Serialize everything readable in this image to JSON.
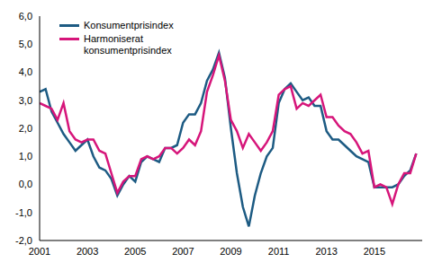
{
  "chart_data": {
    "type": "line",
    "x": [
      2001,
      2001.25,
      2001.5,
      2001.75,
      2002,
      2002.25,
      2002.5,
      2002.75,
      2003,
      2003.25,
      2003.5,
      2003.75,
      2004,
      2004.25,
      2004.5,
      2004.75,
      2005,
      2005.25,
      2005.5,
      2005.75,
      2006,
      2006.25,
      2006.5,
      2006.75,
      2007,
      2007.25,
      2007.5,
      2007.75,
      2008,
      2008.25,
      2008.5,
      2008.75,
      2009,
      2009.25,
      2009.5,
      2009.75,
      2010,
      2010.25,
      2010.5,
      2010.75,
      2011,
      2011.25,
      2011.5,
      2011.75,
      2012,
      2012.25,
      2012.5,
      2012.75,
      2013,
      2013.25,
      2013.5,
      2013.75,
      2014,
      2014.25,
      2014.5,
      2014.75,
      2015,
      2015.25,
      2015.5,
      2015.75,
      2016,
      2016.25,
      2016.5,
      2016.75
    ],
    "series": [
      {
        "name": "Konsumentprisindex",
        "color": "#1d5b83",
        "values": [
          3.3,
          3.4,
          2.6,
          2.2,
          1.8,
          1.5,
          1.2,
          1.4,
          1.6,
          1.0,
          0.6,
          0.5,
          0.2,
          -0.4,
          0.0,
          0.3,
          0.1,
          0.8,
          1.0,
          0.9,
          0.8,
          1.3,
          1.3,
          1.4,
          2.2,
          2.5,
          2.5,
          2.9,
          3.7,
          4.1,
          4.7,
          3.8,
          2.0,
          0.4,
          -0.8,
          -1.5,
          -0.4,
          0.4,
          1.0,
          1.3,
          2.9,
          3.4,
          3.6,
          3.3,
          3.0,
          3.1,
          2.8,
          2.8,
          1.9,
          1.6,
          1.6,
          1.4,
          1.2,
          1.0,
          0.9,
          0.8,
          -0.1,
          -0.1,
          -0.1,
          -0.1,
          0.0,
          0.3,
          0.5,
          1.1
        ]
      },
      {
        "name": "Harmoniserat konsumentprisindex",
        "color": "#d6157a",
        "values": [
          2.9,
          2.8,
          2.7,
          2.3,
          2.9,
          1.9,
          1.6,
          1.5,
          1.6,
          1.6,
          1.2,
          1.1,
          0.4,
          -0.3,
          0.1,
          0.3,
          0.3,
          0.9,
          1.0,
          0.9,
          1.0,
          1.3,
          1.3,
          1.1,
          1.3,
          1.6,
          1.4,
          1.9,
          3.3,
          3.9,
          4.6,
          3.7,
          2.3,
          1.9,
          1.3,
          1.8,
          1.5,
          1.2,
          1.5,
          1.9,
          3.2,
          3.4,
          3.5,
          2.7,
          2.9,
          2.8,
          3.0,
          3.2,
          2.4,
          2.4,
          2.1,
          1.9,
          1.8,
          1.5,
          1.1,
          1.2,
          -0.1,
          0.0,
          -0.1,
          -0.7,
          0.0,
          0.4,
          0.4,
          1.1
        ]
      }
    ],
    "xlim": [
      2001,
      2017
    ],
    "xticks": [
      2001,
      2003,
      2005,
      2007,
      2009,
      2011,
      2013,
      2015
    ],
    "ylim": [
      -2,
      6
    ],
    "yticks": [
      {
        "value": -2,
        "label": "-2,0"
      },
      {
        "value": -1,
        "label": "-1,0"
      },
      {
        "value": 0,
        "label": "0,0"
      },
      {
        "value": 1,
        "label": "1,0"
      },
      {
        "value": 2,
        "label": "2,0"
      },
      {
        "value": 3,
        "label": "3,0"
      },
      {
        "value": 4,
        "label": "4,0"
      },
      {
        "value": 5,
        "label": "5,0"
      },
      {
        "value": 6,
        "label": "6,0"
      }
    ],
    "grid": false,
    "legend": "upper left"
  }
}
